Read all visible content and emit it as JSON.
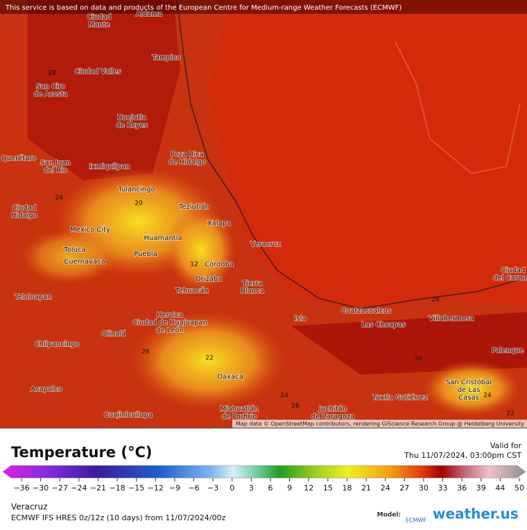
{
  "banner": "This service is based on data and products of the European Centre for Medium-range Weather Forecasts (ECMWF)",
  "attribution": "Map data © OpenStreetMap contributors, rendering GIScience Research Group @ Heidelberg University",
  "cities": [
    {
      "lines": [
        "Ciudad",
        "Mante"
      ]
    },
    {
      "lines": [
        "Aldama"
      ]
    },
    {
      "lines": [
        "Tampico"
      ]
    },
    {
      "lines": [
        "Ciudad Valles"
      ]
    },
    {
      "lines": [
        "San Ciro",
        "de Acosta"
      ]
    },
    {
      "lines": [
        "Huejutla",
        "de Reyes"
      ]
    },
    {
      "lines": [
        "Poza Rica",
        "de Hidalgo"
      ]
    },
    {
      "lines": [
        "Querétaro"
      ]
    },
    {
      "lines": [
        "San Juan",
        "del Rio"
      ]
    },
    {
      "lines": [
        "Ixmiquilpan"
      ]
    },
    {
      "lines": [
        "Tulancingo"
      ]
    },
    {
      "lines": [
        "Teziutlán"
      ]
    },
    {
      "lines": [
        "Ciudad",
        "Hidalgo"
      ]
    },
    {
      "lines": [
        "Xalapa"
      ]
    },
    {
      "lines": [
        "Mexico City"
      ]
    },
    {
      "lines": [
        "Huamantla"
      ]
    },
    {
      "lines": [
        "Veracruz"
      ]
    },
    {
      "lines": [
        "Toluca"
      ]
    },
    {
      "lines": [
        "Puebla"
      ]
    },
    {
      "lines": [
        "Cuernavaca"
      ]
    },
    {
      "lines": [
        "Córdoba"
      ]
    },
    {
      "lines": [
        "Orizaba"
      ]
    },
    {
      "lines": [
        "Tierra",
        "Blanca"
      ]
    },
    {
      "lines": [
        "Tehuacán"
      ]
    },
    {
      "lines": [
        "Teloloapan"
      ]
    },
    {
      "lines": [
        "Coatzacoalcos"
      ]
    },
    {
      "lines": [
        "Heroica",
        "Ciudad de Huajuapan",
        "de León"
      ]
    },
    {
      "lines": [
        "Isla"
      ]
    },
    {
      "lines": [
        "Las Choapas"
      ]
    },
    {
      "lines": [
        "Villahermosa"
      ]
    },
    {
      "lines": [
        "Olinalá"
      ]
    },
    {
      "lines": [
        "Chilpancingo"
      ]
    },
    {
      "lines": [
        "Palenque"
      ]
    },
    {
      "lines": [
        "Oaxaca"
      ]
    },
    {
      "lines": [
        "San Cristóbal",
        "de Las",
        "Casas"
      ]
    },
    {
      "lines": [
        "Acapulco"
      ]
    },
    {
      "lines": [
        "Tuxtla Gutiérrez"
      ]
    },
    {
      "lines": [
        "Miahuatlán",
        "de Porfirio"
      ]
    },
    {
      "lines": [
        "Juchitán",
        "de Zaragoza"
      ]
    },
    {
      "lines": [
        "Cuajinicuilapa"
      ]
    },
    {
      "lines": [
        "Ciudad",
        "del Carmen"
      ]
    }
  ],
  "contour_labels": [
    28,
    24,
    20,
    12,
    22,
    24,
    28,
    30,
    28,
    22,
    24,
    26
  ],
  "legend": {
    "title": "Temperature (°C)",
    "valid_label": "Valid for",
    "valid_time": "Thu 11/07/2024, 03:00pm CST",
    "ticks": [
      -36,
      -30,
      -27,
      -24,
      -21,
      -18,
      -15,
      -12,
      -9,
      -6,
      -3,
      0,
      3,
      6,
      9,
      12,
      15,
      18,
      21,
      24,
      27,
      30,
      33,
      36,
      39,
      44,
      50
    ]
  },
  "footer": {
    "location": "Veracruz",
    "model_run": "ECMWF IFS HRES 0z/12z (10 days) from 11/07/2024/00z",
    "model_label": "Model:",
    "model_name": "ECMWF",
    "brand": "weather.us"
  }
}
